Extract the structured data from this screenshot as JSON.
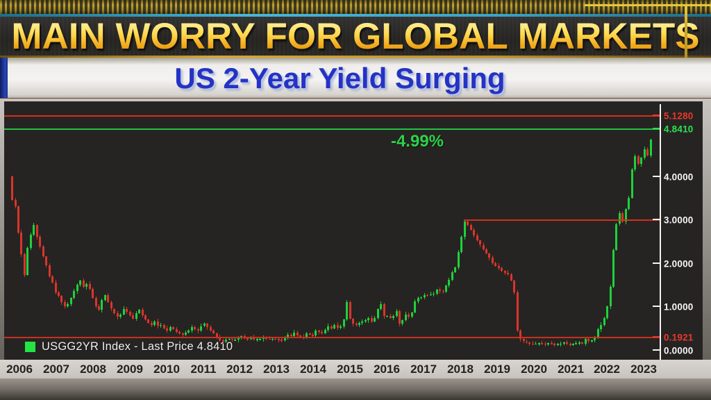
{
  "banner": {
    "title": "MAIN WORRY FOR GLOBAL MARKETS"
  },
  "subtitle": {
    "text": "US 2-Year Yield Surging"
  },
  "chart": {
    "annotation": "-4.99%",
    "annotation_color": "#2dd24b",
    "legend": {
      "label": "USGG2YR Index - Last Price 4.8410",
      "swatch_color": "#22e544"
    },
    "colors": {
      "up": "#1ed13c",
      "down": "#d9352b",
      "axis": "#f4f4f2",
      "plot_bg": "#262422"
    },
    "y_axis": [
      {
        "label": "5.1280",
        "value": 5.128,
        "color": "#e8392b",
        "line": true
      },
      {
        "label": "4.8410",
        "value": 4.841,
        "color": "#2ee04e",
        "line": true
      },
      {
        "label": "4.0000",
        "value": 4.0,
        "color": "#f5f5f3",
        "line": false
      },
      {
        "label": "3.0000",
        "value": 3.0,
        "color": "#f5f5f3",
        "line": false
      },
      {
        "label": "2.0000",
        "value": 2.0,
        "color": "#f5f5f3",
        "line": false
      },
      {
        "label": "1.0000",
        "value": 1.0,
        "color": "#f5f5f3",
        "line": false
      },
      {
        "label": "0.1921",
        "value": 0.1921,
        "color": "#e8392b",
        "line": true
      },
      {
        "label": "0.0000",
        "value": 0.0,
        "color": "#f5f5f3",
        "line": false
      }
    ],
    "reference_lines": [
      {
        "value": 5.128,
        "color": "#d3301f"
      },
      {
        "value": 4.841,
        "color": "#25c242"
      },
      {
        "value": 0.1921,
        "color": "#c93020"
      }
    ],
    "trendline": {
      "value": 3.0,
      "color": "#d3301f",
      "start_month_index": 146
    },
    "x_axis_years": [
      "2006",
      "2007",
      "2008",
      "2009",
      "2010",
      "2011",
      "2012",
      "2013",
      "2014",
      "2015",
      "2016",
      "2017",
      "2018",
      "2019",
      "2020",
      "2021",
      "2022",
      "2023"
    ]
  },
  "chart_data": {
    "type": "candlestick",
    "title": "US 2-Year Yield Surging",
    "series_name": "USGG2YR Index",
    "last_price": 4.841,
    "change_annotation": "-4.99%",
    "x_start_year": 2006,
    "x_end_year": 2023.25,
    "interval": "monthly",
    "ylim": [
      0.0,
      5.5
    ],
    "reference_levels": {
      "upper_red": 5.128,
      "last_price_green": 4.841,
      "lower_red": 0.1921,
      "trend_red": 3.0
    },
    "first_open": 4.0,
    "monthly_closes": [
      3.45,
      3.3,
      2.7,
      2.2,
      1.72,
      2.35,
      2.65,
      2.88,
      2.6,
      2.38,
      2.15,
      1.95,
      1.7,
      1.55,
      1.32,
      1.24,
      1.1,
      1.0,
      1.06,
      1.2,
      1.36,
      1.5,
      1.6,
      1.45,
      1.52,
      1.4,
      1.2,
      1.0,
      0.92,
      1.15,
      1.26,
      1.1,
      0.95,
      0.85,
      0.76,
      0.82,
      0.95,
      0.88,
      0.8,
      0.72,
      0.85,
      0.92,
      0.8,
      0.7,
      0.62,
      0.58,
      0.66,
      0.56,
      0.58,
      0.5,
      0.45,
      0.52,
      0.48,
      0.42,
      0.38,
      0.35,
      0.4,
      0.45,
      0.52,
      0.48,
      0.45,
      0.55,
      0.6,
      0.52,
      0.45,
      0.38,
      0.3,
      0.22,
      0.2,
      0.24,
      0.26,
      0.24,
      0.24,
      0.28,
      0.32,
      0.27,
      0.26,
      0.3,
      0.24,
      0.25,
      0.25,
      0.29,
      0.26,
      0.25,
      0.26,
      0.25,
      0.24,
      0.22,
      0.3,
      0.36,
      0.32,
      0.4,
      0.33,
      0.31,
      0.29,
      0.38,
      0.35,
      0.33,
      0.45,
      0.42,
      0.39,
      0.47,
      0.54,
      0.5,
      0.58,
      0.51,
      0.55,
      0.7,
      1.1,
      0.72,
      0.6,
      0.58,
      0.62,
      0.65,
      0.68,
      0.74,
      0.66,
      0.74,
      0.94,
      1.06,
      0.78,
      0.79,
      0.73,
      0.78,
      0.89,
      0.6,
      0.68,
      0.82,
      0.77,
      0.86,
      1.12,
      1.2,
      1.22,
      1.27,
      1.26,
      1.28,
      1.3,
      1.39,
      1.36,
      1.34,
      1.49,
      1.61,
      1.79,
      1.9,
      2.25,
      2.6,
      2.95,
      2.88,
      2.76,
      2.64,
      2.52,
      2.42,
      2.32,
      2.22,
      2.12,
      2.0,
      1.94,
      1.88,
      1.82,
      1.78,
      1.74,
      1.6,
      1.32,
      0.45,
      0.26,
      0.2,
      0.17,
      0.15,
      0.14,
      0.15,
      0.16,
      0.15,
      0.14,
      0.16,
      0.14,
      0.13,
      0.14,
      0.15,
      0.17,
      0.14,
      0.13,
      0.14,
      0.16,
      0.17,
      0.15,
      0.25,
      0.2,
      0.22,
      0.28,
      0.48,
      0.58,
      0.73,
      1.0,
      1.45,
      2.3,
      2.9,
      3.15,
      2.95,
      3.25,
      3.5,
      4.15,
      4.45,
      4.28,
      4.42,
      4.62,
      4.48,
      4.841
    ]
  }
}
